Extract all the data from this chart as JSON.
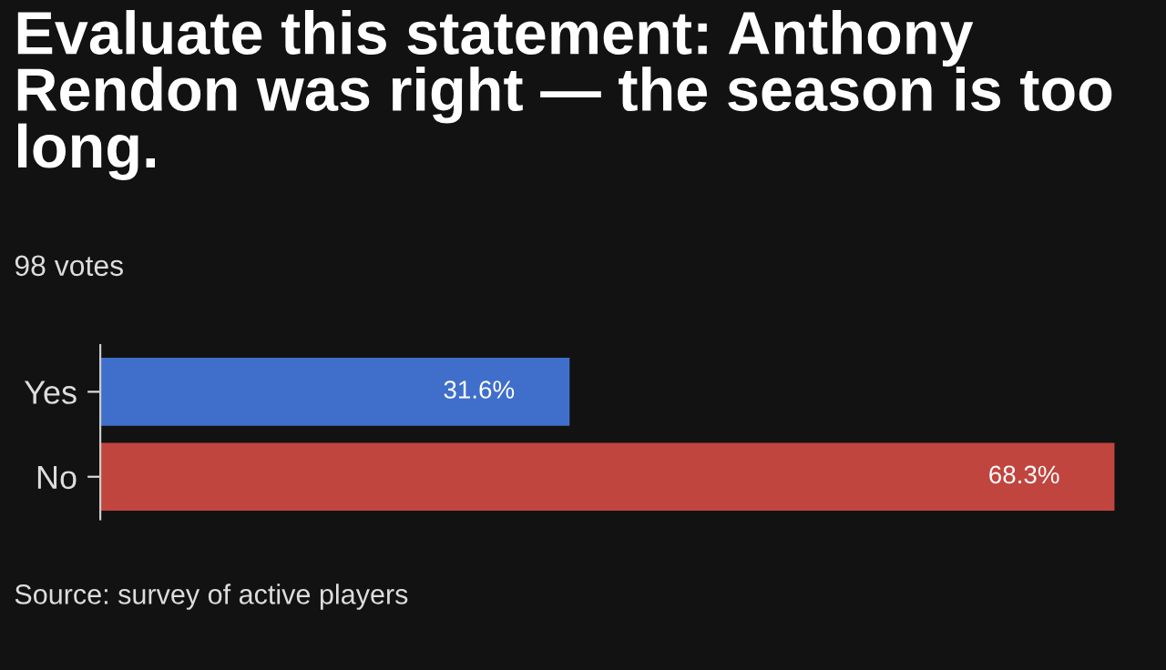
{
  "chart_data": {
    "type": "bar",
    "orientation": "horizontal",
    "title": "Evaluate this statement: Anthony Rendon was right — the season is too long.",
    "subtitle": "98 votes",
    "categories": [
      "Yes",
      "No"
    ],
    "values": [
      31.6,
      68.3
    ],
    "colors": [
      "#3f6fca",
      "#c1453f"
    ],
    "value_labels": [
      "31.6%",
      "68.3%"
    ],
    "grid": false,
    "legend": false,
    "tick_labels": "y",
    "annotations": [
      "Source: survey of active players"
    ]
  }
}
